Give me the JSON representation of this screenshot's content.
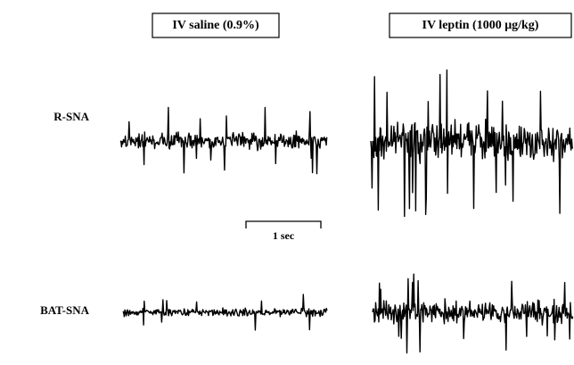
{
  "columns": [
    {
      "title": "IV saline (0.9%)"
    },
    {
      "title": "IV leptin (1000 μg/kg)"
    }
  ],
  "rows": [
    {
      "label": "R-SNA"
    },
    {
      "label": "BAT-SNA"
    }
  ],
  "scale_bar": {
    "label": "1 sec"
  }
}
